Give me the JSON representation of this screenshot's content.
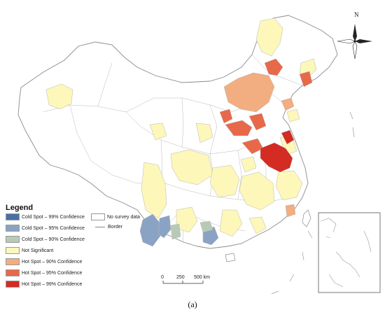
{
  "legend": {
    "title": "Legend",
    "items": [
      {
        "label": "Cold Spot – 99% Confidence",
        "color": "#4a6fa5"
      },
      {
        "label": "Cold Spot – 95% Confidence",
        "color": "#8aa3c4"
      },
      {
        "label": "Cold Spot – 90% Confidence",
        "color": "#b8c9b8"
      },
      {
        "label": "Not Significant",
        "color": "#fdf7b9"
      },
      {
        "label": "Hot Spot – 90% Confidence",
        "color": "#f2ad80"
      },
      {
        "label": "Hot Spot – 95% Confidence",
        "color": "#e8684a"
      },
      {
        "label": "Hot Spot – 99% Confidence",
        "color": "#d42b22"
      }
    ],
    "no_data": {
      "label": "No survey data",
      "color": "#ffffff"
    },
    "border": {
      "label": "Border",
      "color": "#888888"
    }
  },
  "scale_bar": {
    "ticks": [
      "0",
      "250",
      "500 km"
    ]
  },
  "north_arrow": {
    "label": "N"
  },
  "caption": "(a)"
}
